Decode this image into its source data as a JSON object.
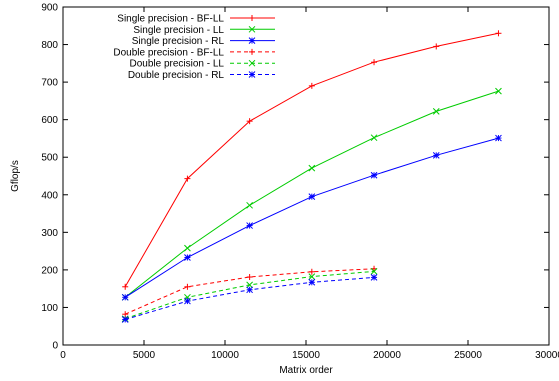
{
  "chart_data": {
    "type": "line",
    "title": "",
    "xlabel": "Matrix order",
    "ylabel": "Gflop/s",
    "xlim": [
      0,
      30000
    ],
    "ylim": [
      0,
      900
    ],
    "xticks": [
      "0",
      "5000",
      "10000",
      "15000",
      "20000",
      "25000",
      "30000"
    ],
    "yticks": [
      "0",
      "100",
      "200",
      "300",
      "400",
      "500",
      "600",
      "700",
      "800",
      "900"
    ],
    "grid": false,
    "legend_position": "top-left",
    "series": [
      {
        "name": "Single precision - BF-LL",
        "color": "#ff0000",
        "dashed": false,
        "marker": "plus",
        "x": [
          3840,
          7680,
          11520,
          15360,
          19200,
          23040,
          26880
        ],
        "y": [
          155,
          443,
          596,
          690,
          753,
          795,
          830
        ]
      },
      {
        "name": "Single precision - LL",
        "color": "#00cc00",
        "dashed": false,
        "marker": "cross",
        "x": [
          3840,
          7680,
          11520,
          15360,
          19200,
          23040,
          26880
        ],
        "y": [
          127,
          258,
          372,
          471,
          552,
          622,
          676
        ]
      },
      {
        "name": "Single precision - RL",
        "color": "#0000ff",
        "dashed": false,
        "marker": "star",
        "x": [
          3840,
          7680,
          11520,
          15360,
          19200,
          23040,
          26880
        ],
        "y": [
          127,
          233,
          318,
          395,
          452,
          505,
          551
        ]
      },
      {
        "name": "Double precision - BF-LL",
        "color": "#ff0000",
        "dashed": true,
        "marker": "plus",
        "x": [
          3840,
          7680,
          11520,
          15360,
          19200
        ],
        "y": [
          82,
          155,
          181,
          195,
          203
        ]
      },
      {
        "name": "Double precision - LL",
        "color": "#00cc00",
        "dashed": true,
        "marker": "cross",
        "x": [
          3840,
          7680,
          11520,
          15360,
          19200
        ],
        "y": [
          70,
          127,
          160,
          182,
          196
        ]
      },
      {
        "name": "Double precision - RL",
        "color": "#0000ff",
        "dashed": true,
        "marker": "star",
        "x": [
          3840,
          7680,
          11520,
          15360,
          19200
        ],
        "y": [
          68,
          117,
          147,
          167,
          180
        ]
      }
    ]
  }
}
